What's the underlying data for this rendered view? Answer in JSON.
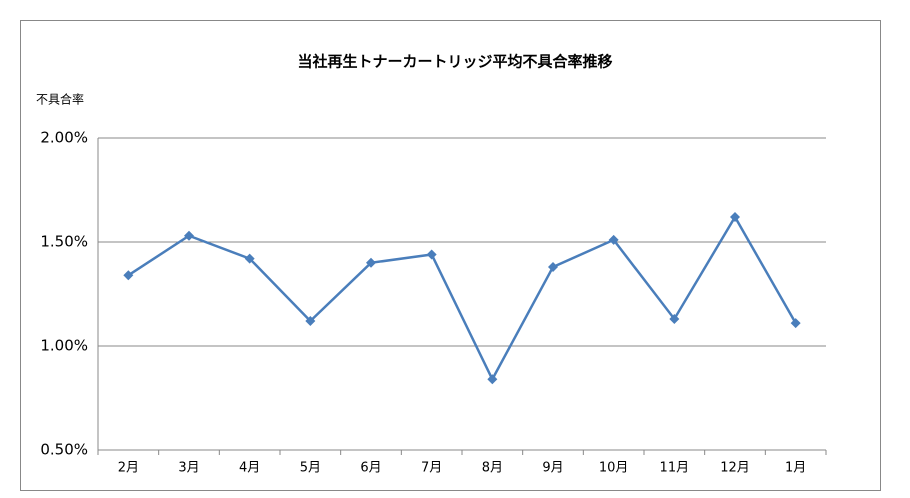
{
  "chart_data": {
    "type": "line",
    "title": "当社再生トナーカートリッジ平均不具合率推移",
    "y_label": "不具合率",
    "categories": [
      "2月",
      "3月",
      "4月",
      "5月",
      "6月",
      "7月",
      "8月",
      "9月",
      "10月",
      "11月",
      "12月",
      "1月"
    ],
    "values": [
      1.34,
      1.53,
      1.42,
      1.12,
      1.4,
      1.44,
      0.84,
      1.38,
      1.51,
      1.13,
      1.62,
      1.11
    ],
    "color": "#4a7ebb",
    "ylim": [
      0.5,
      2.0
    ],
    "yticks": [
      {
        "value": 0.5,
        "label": "0.50%"
      },
      {
        "value": 1.0,
        "label": "1.00%"
      },
      {
        "value": 1.5,
        "label": "1.50%"
      },
      {
        "value": 2.0,
        "label": "2.00%"
      }
    ],
    "grid": true
  }
}
